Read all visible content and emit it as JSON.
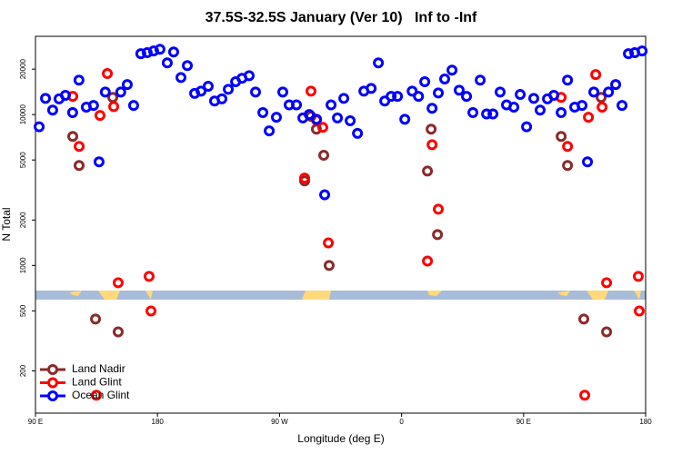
{
  "chart_data": {
    "type": "scatter",
    "title": "37.5S-32.5S January (Ver 10)   Inf to -Inf",
    "x_label": "Longitude (deg E)",
    "y_label": "N Total",
    "log_y": true,
    "legend_position": "bottom-left",
    "xlim": [
      90,
      540
    ],
    "xticks": [
      {
        "value": 90,
        "label": "90 E"
      },
      180,
      {
        "value": 270,
        "label": "90 W"
      },
      {
        "value": 360,
        "label": "0"
      },
      {
        "value": 450,
        "label": "90 E"
      },
      {
        "value": 540,
        "label": "180"
      }
    ],
    "ylim": [
      105,
      33000
    ],
    "yticks": [
      200,
      500,
      1000,
      2000,
      5000,
      10000,
      20000
    ],
    "series": [
      {
        "name": "Land Nadir",
        "color": "#8b2a2a",
        "x": [
          117.5,
          122.2,
          134.3,
          147.0,
          151.0,
          288.5,
          293.2,
          297.2,
          302.6,
          306.6,
          379.1,
          381.8,
          386.5,
          477.7,
          482.4,
          494.4,
          507.2,
          511.2
        ],
        "values": [
          7160,
          4600,
          441,
          13000,
          363,
          3630,
          9730,
          8000,
          5370,
          1000,
          4220,
          8000,
          1600,
          7160,
          4600,
          441,
          13000,
          363
        ]
      },
      {
        "name": "Land Glint",
        "color": "#ff0000",
        "x": [
          117.5,
          122.2,
          134.9,
          137.6,
          143.0,
          147.7,
          151.0,
          173.8,
          175.2,
          288.5,
          293.2,
          297.2,
          301.9,
          306.0,
          379.1,
          382.5,
          387.1,
          477.7,
          482.4,
          495.1,
          497.8,
          503.2,
          507.9,
          511.2,
          534.6,
          535.3
        ],
        "values": [
          13200,
          6150,
          138,
          9870,
          18700,
          11300,
          768,
          846,
          499,
          3790,
          14300,
          9200,
          8220,
          1410,
          1070,
          6310,
          2360,
          13000,
          6150,
          138,
          9600,
          18400,
          11200,
          768,
          846,
          499
        ]
      },
      {
        "name": "Ocean Glint",
        "color": "#0000ff",
        "x": [
          92.7,
          97.4,
          102.7,
          107.4,
          112.1,
          117.4,
          122.1,
          127.5,
          132.8,
          136.9,
          141.5,
          152.9,
          157.7,
          162.4,
          167.7,
          172.4,
          177.1,
          181.8,
          187.2,
          191.9,
          197.3,
          202.0,
          207.4,
          212.1,
          217.4,
          222.1,
          227.5,
          232.2,
          237.6,
          242.3,
          247.6,
          252.3,
          257.7,
          262.4,
          267.7,
          272.4,
          277.1,
          282.5,
          287.2,
          291.9,
          297.3,
          303.3,
          308.0,
          312.7,
          317.4,
          322.1,
          327.5,
          332.2,
          337.6,
          342.9,
          347.6,
          352.3,
          357.0,
          362.4,
          367.8,
          372.5,
          377.1,
          382.5,
          387.1,
          391.8,
          397.2,
          402.5,
          407.9,
          412.6,
          418.0,
          422.7,
          427.4,
          432.7,
          437.4,
          442.8,
          447.5,
          452.2,
          457.5,
          462.2,
          467.6,
          472.3,
          477.7,
          482.4,
          487.7,
          493.1,
          497.1,
          501.8,
          512.6,
          517.9,
          522.6,
          527.3,
          532.0,
          537.4
        ],
        "values": [
          8300,
          12800,
          10700,
          12700,
          13400,
          10300,
          16900,
          11200,
          11500,
          4860,
          14100,
          14100,
          15800,
          11500,
          25300,
          25700,
          26400,
          27100,
          22000,
          26000,
          17600,
          21100,
          13800,
          14300,
          15400,
          12300,
          12700,
          14700,
          16500,
          17400,
          18100,
          14100,
          10300,
          7800,
          9600,
          14100,
          11600,
          11600,
          9500,
          10000,
          9300,
          2940,
          11600,
          9500,
          12800,
          9100,
          7500,
          14300,
          14900,
          22000,
          12300,
          13200,
          13200,
          9300,
          14300,
          13200,
          16500,
          11000,
          13900,
          17200,
          19700,
          14500,
          13200,
          10300,
          16900,
          10100,
          10100,
          14100,
          11600,
          11200,
          13600,
          8300,
          12800,
          10700,
          12700,
          13400,
          10300,
          16900,
          11200,
          11500,
          4860,
          14100,
          14100,
          15800,
          11500,
          25300,
          25700,
          26400
        ]
      }
    ]
  }
}
